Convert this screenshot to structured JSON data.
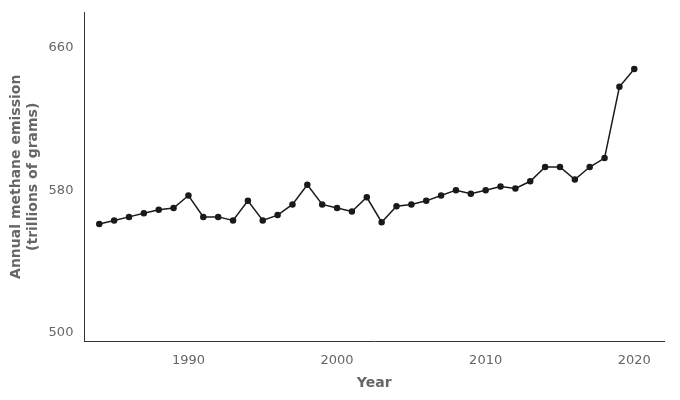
{
  "chart_data": {
    "type": "line",
    "x": [
      1984,
      1985,
      1986,
      1987,
      1988,
      1989,
      1990,
      1991,
      1992,
      1993,
      1994,
      1995,
      1996,
      1997,
      1998,
      1999,
      2000,
      2001,
      2002,
      2003,
      2004,
      2005,
      2006,
      2007,
      2008,
      2009,
      2010,
      2011,
      2012,
      2013,
      2014,
      2015,
      2016,
      2017,
      2018,
      2019,
      2020
    ],
    "values": [
      561,
      563,
      565,
      567,
      569,
      570,
      577,
      565,
      565,
      563,
      574,
      563,
      566,
      572,
      583,
      572,
      570,
      568,
      576,
      562,
      571,
      572,
      574,
      577,
      580,
      578,
      580,
      582,
      581,
      585,
      593,
      593,
      586,
      593,
      598,
      638,
      648
    ],
    "xlabel": "Year",
    "ylabel": "Annual methane emission\n(trillions of grams)",
    "xlim": [
      1983,
      2022
    ],
    "ylim": [
      495,
      680
    ],
    "xticks": [
      1990,
      2000,
      2010,
      2020
    ],
    "yticks": [
      500,
      580,
      660
    ],
    "color": "#1a1a1a",
    "marker": "circle",
    "grid": false
  }
}
